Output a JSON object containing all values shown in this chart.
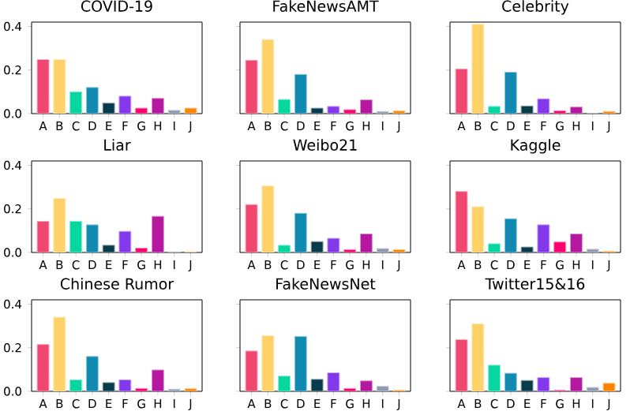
{
  "chart_data": [
    {
      "type": "bar",
      "title": "COVID-19",
      "categories": [
        "A",
        "B",
        "C",
        "D",
        "E",
        "F",
        "G",
        "H",
        "I",
        "J"
      ],
      "values": [
        0.248,
        0.248,
        0.1,
        0.12,
        0.048,
        0.08,
        0.025,
        0.07,
        0.015,
        0.025
      ],
      "colors": [
        "#ef476f",
        "#ffd166",
        "#06d6a0",
        "#118ab2",
        "#073b4c",
        "#8338ec",
        "#ff006e",
        "#b5179e",
        "#8d99ae",
        "#fb8500"
      ],
      "ylim": [
        0,
        0.42
      ],
      "yticks": [
        {
          "value": 0,
          "label": "0.0"
        },
        {
          "value": 0.2,
          "label": "0.2"
        },
        {
          "value": 0.4,
          "label": "0.4"
        }
      ]
    },
    {
      "type": "bar",
      "title": "FakeNewsAMT",
      "categories": [
        "A",
        "B",
        "C",
        "D",
        "E",
        "F",
        "G",
        "H",
        "I",
        "J"
      ],
      "values": [
        0.245,
        0.34,
        0.065,
        0.18,
        0.025,
        0.033,
        0.018,
        0.063,
        0.01,
        0.012
      ],
      "colors": [
        "#ef476f",
        "#ffd166",
        "#06d6a0",
        "#118ab2",
        "#073b4c",
        "#8338ec",
        "#ff006e",
        "#b5179e",
        "#8d99ae",
        "#fb8500"
      ],
      "ylim": [
        0,
        0.42
      ],
      "yticks": [
        {
          "value": 0,
          "label": null
        },
        {
          "value": 0.2,
          "label": null
        },
        {
          "value": 0.4,
          "label": null
        }
      ],
      "tick_labels": "x"
    },
    {
      "type": "bar",
      "title": "Celebrity",
      "categories": [
        "A",
        "B",
        "C",
        "D",
        "E",
        "F",
        "G",
        "H",
        "I",
        "J"
      ],
      "values": [
        0.205,
        0.41,
        0.033,
        0.19,
        0.035,
        0.068,
        0.013,
        0.03,
        0.0,
        0.01
      ],
      "colors": [
        "#ef476f",
        "#ffd166",
        "#06d6a0",
        "#118ab2",
        "#073b4c",
        "#8338ec",
        "#ff006e",
        "#b5179e",
        "#8d99ae",
        "#fb8500"
      ],
      "ylim": [
        0,
        0.42
      ],
      "yticks": [
        {
          "value": 0,
          "label": null
        },
        {
          "value": 0.2,
          "label": null
        },
        {
          "value": 0.4,
          "label": null
        }
      ],
      "tick_labels": "x"
    },
    {
      "type": "bar",
      "title": "Liar",
      "categories": [
        "A",
        "B",
        "C",
        "D",
        "E",
        "F",
        "G",
        "H",
        "I",
        "J"
      ],
      "values": [
        0.143,
        0.248,
        0.143,
        0.127,
        0.033,
        0.097,
        0.02,
        0.166,
        0.003,
        0.001
      ],
      "colors": [
        "#ef476f",
        "#ffd166",
        "#06d6a0",
        "#118ab2",
        "#073b4c",
        "#8338ec",
        "#ff006e",
        "#b5179e",
        "#8d99ae",
        "#fb8500"
      ],
      "ylim": [
        0,
        0.42
      ],
      "yticks": [
        {
          "value": 0,
          "label": "0.0"
        },
        {
          "value": 0.2,
          "label": "0.2"
        },
        {
          "value": 0.4,
          "label": "0.4"
        }
      ]
    },
    {
      "type": "bar",
      "title": "Weibo21",
      "categories": [
        "A",
        "B",
        "C",
        "D",
        "E",
        "F",
        "G",
        "H",
        "I",
        "J"
      ],
      "values": [
        0.22,
        0.305,
        0.033,
        0.18,
        0.05,
        0.065,
        0.013,
        0.085,
        0.018,
        0.013
      ],
      "colors": [
        "#ef476f",
        "#ffd166",
        "#06d6a0",
        "#118ab2",
        "#073b4c",
        "#8338ec",
        "#ff006e",
        "#b5179e",
        "#8d99ae",
        "#fb8500"
      ],
      "ylim": [
        0,
        0.42
      ],
      "yticks": [
        {
          "value": 0,
          "label": null
        },
        {
          "value": 0.2,
          "label": null
        },
        {
          "value": 0.4,
          "label": null
        }
      ],
      "tick_labels": "x"
    },
    {
      "type": "bar",
      "title": "Kaggle",
      "categories": [
        "A",
        "B",
        "C",
        "D",
        "E",
        "F",
        "G",
        "H",
        "I",
        "J"
      ],
      "values": [
        0.28,
        0.21,
        0.04,
        0.155,
        0.025,
        0.127,
        0.048,
        0.085,
        0.015,
        0.005
      ],
      "colors": [
        "#ef476f",
        "#ffd166",
        "#06d6a0",
        "#118ab2",
        "#073b4c",
        "#8338ec",
        "#ff006e",
        "#b5179e",
        "#8d99ae",
        "#fb8500"
      ],
      "ylim": [
        0,
        0.42
      ],
      "yticks": [
        {
          "value": 0,
          "label": null
        },
        {
          "value": 0.2,
          "label": null
        },
        {
          "value": 0.4,
          "label": null
        }
      ],
      "tick_labels": "x"
    },
    {
      "type": "bar",
      "title": "Chinese Rumor",
      "categories": [
        "A",
        "B",
        "C",
        "D",
        "E",
        "F",
        "G",
        "H",
        "I",
        "J"
      ],
      "values": [
        0.215,
        0.34,
        0.053,
        0.16,
        0.04,
        0.053,
        0.013,
        0.098,
        0.01,
        0.012
      ],
      "colors": [
        "#ef476f",
        "#ffd166",
        "#06d6a0",
        "#118ab2",
        "#073b4c",
        "#8338ec",
        "#ff006e",
        "#b5179e",
        "#8d99ae",
        "#fb8500"
      ],
      "ylim": [
        0,
        0.42
      ],
      "yticks": [
        {
          "value": 0,
          "label": "0.0"
        },
        {
          "value": 0.2,
          "label": "0.2"
        },
        {
          "value": 0.4,
          "label": "0.4"
        }
      ]
    },
    {
      "type": "bar",
      "title": "FakeNewsNet",
      "categories": [
        "A",
        "B",
        "C",
        "D",
        "E",
        "F",
        "G",
        "H",
        "I",
        "J"
      ],
      "values": [
        0.185,
        0.255,
        0.07,
        0.252,
        0.055,
        0.085,
        0.013,
        0.048,
        0.023,
        0.005
      ],
      "colors": [
        "#ef476f",
        "#ffd166",
        "#06d6a0",
        "#118ab2",
        "#073b4c",
        "#8338ec",
        "#ff006e",
        "#b5179e",
        "#8d99ae",
        "#fb8500"
      ],
      "ylim": [
        0,
        0.42
      ],
      "yticks": [
        {
          "value": 0,
          "label": null
        },
        {
          "value": 0.2,
          "label": null
        },
        {
          "value": 0.4,
          "label": null
        }
      ],
      "tick_labels": "x"
    },
    {
      "type": "bar",
      "title": "Twitter15&16",
      "categories": [
        "A",
        "B",
        "C",
        "D",
        "E",
        "F",
        "G",
        "H",
        "I",
        "J"
      ],
      "values": [
        0.237,
        0.31,
        0.12,
        0.083,
        0.05,
        0.063,
        0.005,
        0.063,
        0.018,
        0.037
      ],
      "colors": [
        "#ef476f",
        "#ffd166",
        "#06d6a0",
        "#118ab2",
        "#073b4c",
        "#8338ec",
        "#ff006e",
        "#b5179e",
        "#8d99ae",
        "#fb8500"
      ],
      "ylim": [
        0,
        0.42
      ],
      "yticks": [
        {
          "value": 0,
          "label": null
        },
        {
          "value": 0.2,
          "label": null
        },
        {
          "value": 0.4,
          "label": null
        }
      ],
      "tick_labels": "x"
    }
  ]
}
